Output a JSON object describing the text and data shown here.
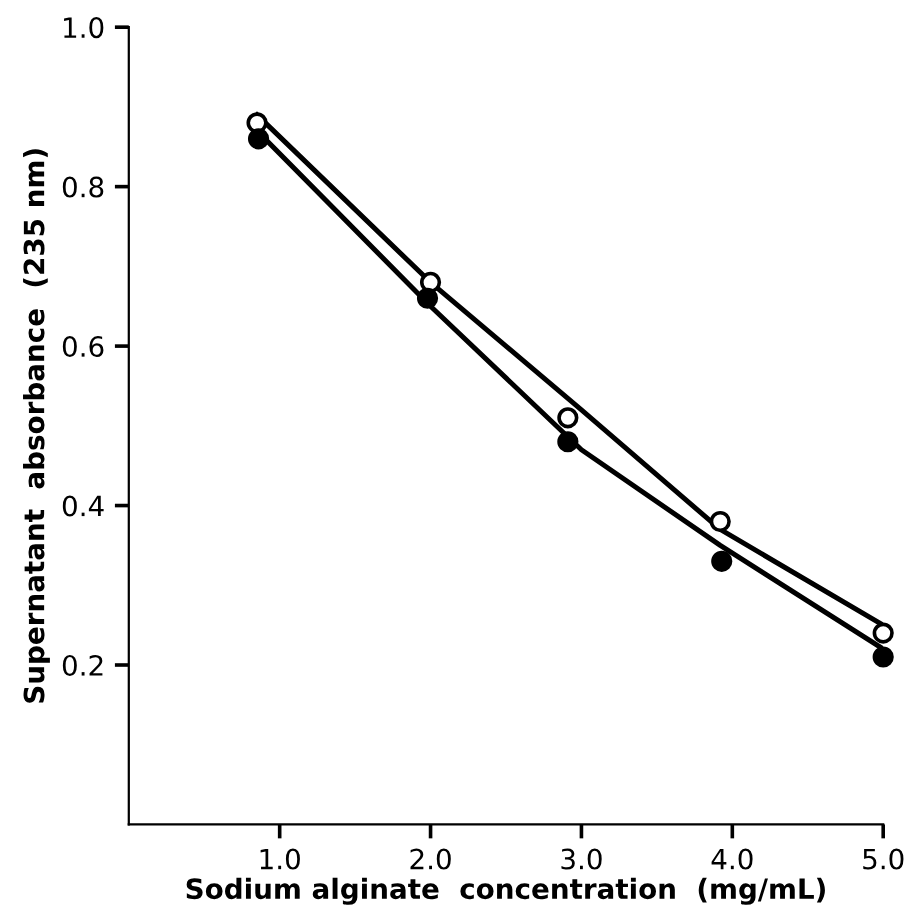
{
  "chart_data": {
    "type": "scatter",
    "xlabel": "Sodium alginate  concentration  (mg/mL)",
    "ylabel": "Supernatant  absorbance  (235 nm)",
    "xlim": [
      0,
      5.0
    ],
    "ylim": [
      0,
      1.0
    ],
    "xticks": [
      {
        "value": 1,
        "label": "1.0"
      },
      {
        "value": 2,
        "label": "2.0"
      },
      {
        "value": 3,
        "label": "3.0"
      },
      {
        "value": 4,
        "label": "4.0"
      },
      {
        "value": 5,
        "label": "5.0"
      }
    ],
    "yticks": [
      {
        "value": 0.2,
        "label": "0.2"
      },
      {
        "value": 0.4,
        "label": "0.4"
      },
      {
        "value": 0.6,
        "label": "0.6"
      },
      {
        "value": 0.8,
        "label": "0.8"
      },
      {
        "value": 1.0,
        "label": "1.0"
      }
    ],
    "grid": false,
    "legend": false,
    "series": [
      {
        "marker": "circle",
        "color": "#ffffff",
        "x": [
          0.85,
          2.0,
          2.91,
          3.92,
          5.0
        ],
        "values": [
          0.88,
          0.68,
          0.51,
          0.38,
          0.24
        ]
      },
      {
        "marker": "circle",
        "color": "#000000",
        "x": [
          0.86,
          1.98,
          2.91,
          3.93,
          5.0
        ],
        "values": [
          0.86,
          0.66,
          0.48,
          0.33,
          0.21
        ]
      },
      {
        "type": "line",
        "marker": "none",
        "color": "#000000",
        "line_style": "solid",
        "x": [
          0.85,
          2.0,
          3.0,
          3.92,
          5.0
        ],
        "values": [
          0.89,
          0.68,
          0.52,
          0.37,
          0.25
        ]
      },
      {
        "type": "line",
        "marker": "none",
        "color": "#000000",
        "line_style": "solid",
        "x": [
          0.85,
          2.0,
          3.0,
          3.92,
          5.0
        ],
        "values": [
          0.87,
          0.65,
          0.47,
          0.35,
          0.22
        ]
      }
    ]
  }
}
